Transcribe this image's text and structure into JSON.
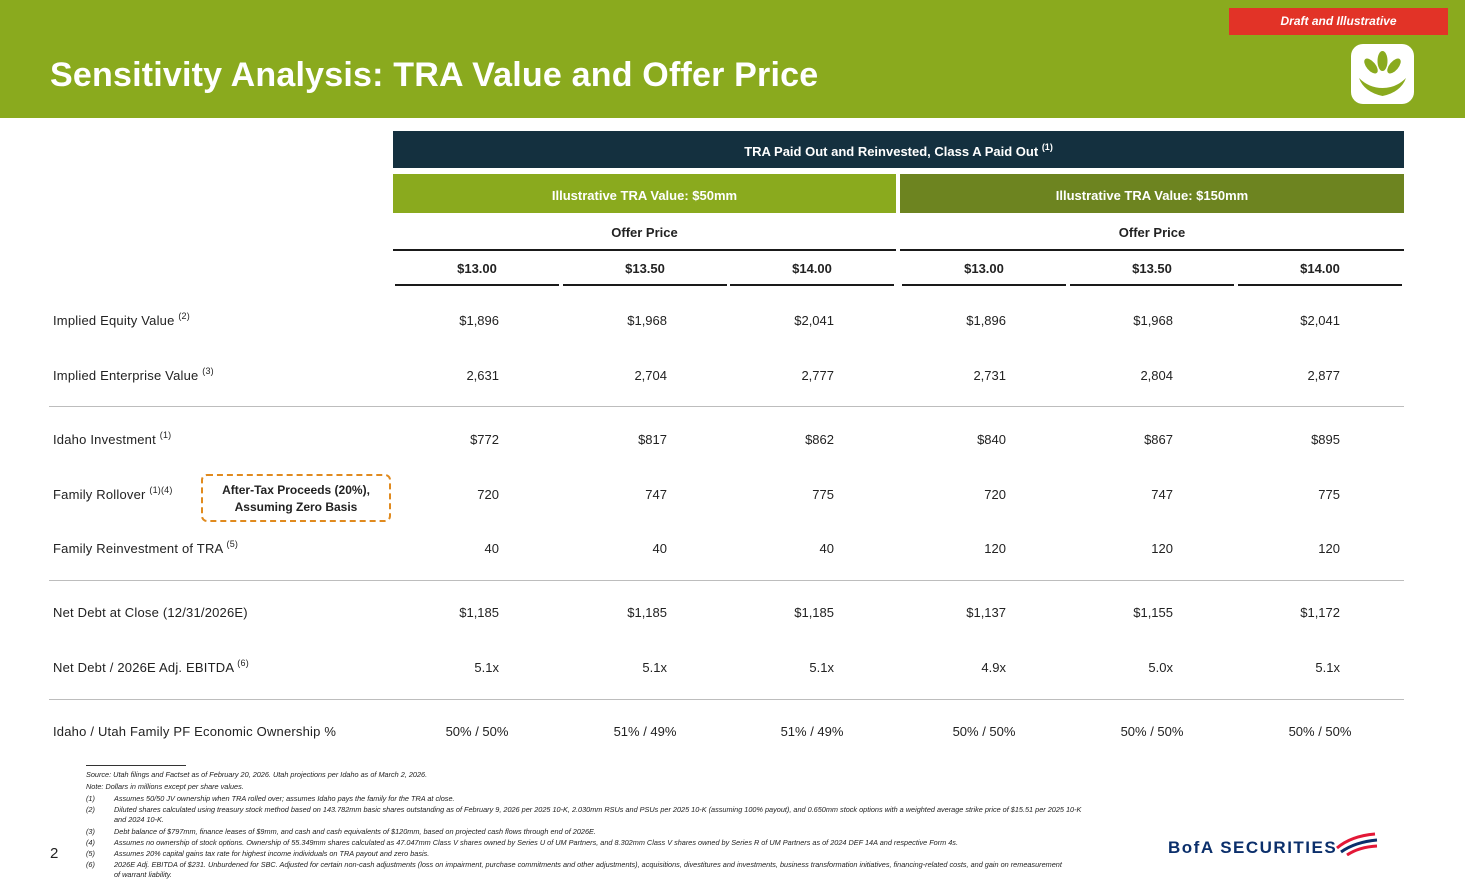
{
  "header": {
    "title": "Sensitivity Analysis: TRA Value and Offer Price",
    "draft_badge": "Draft and Illustrative",
    "logo_icon": "leaf-logo-icon"
  },
  "table": {
    "band_title": "TRA Paid Out and Reinvested, Class A Paid Out",
    "band_title_note": "(1)",
    "groups": [
      {
        "label": "Illustrative TRA Value: $50mm",
        "subheader": "Offer Price"
      },
      {
        "label": "Illustrative TRA Value: $150mm",
        "subheader": "Offer Price"
      }
    ],
    "columns": [
      "$13.00",
      "$13.50",
      "$14.00",
      "$13.00",
      "$13.50",
      "$14.00"
    ],
    "rows": [
      {
        "label": "Implied Equity Value",
        "note": "(2)",
        "values": [
          "$1,896",
          "$1,968",
          "$2,041",
          "$1,896",
          "$1,968",
          "$2,041"
        ]
      },
      {
        "label": "Implied Enterprise Value",
        "note": "(3)",
        "values": [
          "2,631",
          "2,704",
          "2,777",
          "2,731",
          "2,804",
          "2,877"
        ]
      },
      {
        "label": "Idaho Investment",
        "note": "(1)",
        "values": [
          "$772",
          "$817",
          "$862",
          "$840",
          "$867",
          "$895"
        ]
      },
      {
        "label": "Family Rollover",
        "note": "(1)(4)",
        "values": [
          "720",
          "747",
          "775",
          "720",
          "747",
          "775"
        ]
      },
      {
        "label": "Family Reinvestment of TRA",
        "note": "(5)",
        "values": [
          "40",
          "40",
          "40",
          "120",
          "120",
          "120"
        ]
      },
      {
        "label": "Net Debt at Close (12/31/2026E)",
        "note": "",
        "values": [
          "$1,185",
          "$1,185",
          "$1,185",
          "$1,137",
          "$1,155",
          "$1,172"
        ]
      },
      {
        "label": "Net Debt / 2026E Adj. EBITDA",
        "note": "(6)",
        "values": [
          "5.1x",
          "5.1x",
          "5.1x",
          "4.9x",
          "5.0x",
          "5.1x"
        ]
      },
      {
        "label": "Idaho / Utah Family PF Economic Ownership %",
        "note": "",
        "values": [
          "50% / 50%",
          "51% / 49%",
          "51% / 49%",
          "50% / 50%",
          "50% / 50%",
          "50% / 50%"
        ]
      }
    ],
    "callout_line1": "After-Tax Proceeds (20%),",
    "callout_line2": "Assuming Zero Basis"
  },
  "footnotes": {
    "source": "Source: Utah filings and Factset as of February 20, 2026. Utah projections per Idaho as of March 2, 2026.",
    "note": "Note: Dollars in millions except per share values.",
    "items": [
      {
        "num": "(1)",
        "lines": [
          "Assumes 50/50 JV ownership when TRA rolled over; assumes Idaho pays the family for the TRA at close."
        ]
      },
      {
        "num": "(2)",
        "lines": [
          "Diluted shares calculated using treasury stock method based on 143.782mm basic shares outstanding as of February 9, 2026 per 2025 10-K, 2.030mm RSUs and PSUs per 2025 10-K (assuming 100% payout), and 0.650mm stock options with a weighted average strike price of $15.51 per 2025 10-K",
          "and 2024 10-K."
        ]
      },
      {
        "num": "(3)",
        "lines": [
          "Debt balance of $797mm, finance leases of $9mm, and cash and cash equivalents of $120mm, based on projected cash flows through end of 2026E."
        ]
      },
      {
        "num": "(4)",
        "lines": [
          "Assumes no ownership of stock options. Ownership of 55.349mm shares calculated as 47.047mm Class V shares owned by Series U of UM Partners, and 8.302mm Class V shares owned by Series R of UM Partners as of 2024 DEF 14A and respective Form 4s."
        ]
      },
      {
        "num": "(5)",
        "lines": [
          "Assumes 20% capital gains tax rate for highest income individuals on TRA payout and zero basis."
        ]
      },
      {
        "num": "(6)",
        "lines": [
          "2026E Adj. EBITDA of $231. Unburdened for SBC. Adjusted for certain non-cash adjustments (loss on impairment, purchase commitments and other adjustments), acquisitions, divestitures and investments, business transformation initiatives, financing-related costs, and gain on remeasurement",
          "of warrant liability."
        ]
      }
    ]
  },
  "footer": {
    "page_number": "2",
    "brand": "BofA SECURITIES",
    "brand_icon": "bofa-flag-icon"
  },
  "colors": {
    "header_green": "#8aaa1e",
    "dark_band": "#14303f",
    "right_band": "#6d8420",
    "draft_red": "#e23327",
    "callout_orange": "#e08a1e",
    "brand_navy": "#0b2f6b",
    "brand_red": "#e31837"
  }
}
